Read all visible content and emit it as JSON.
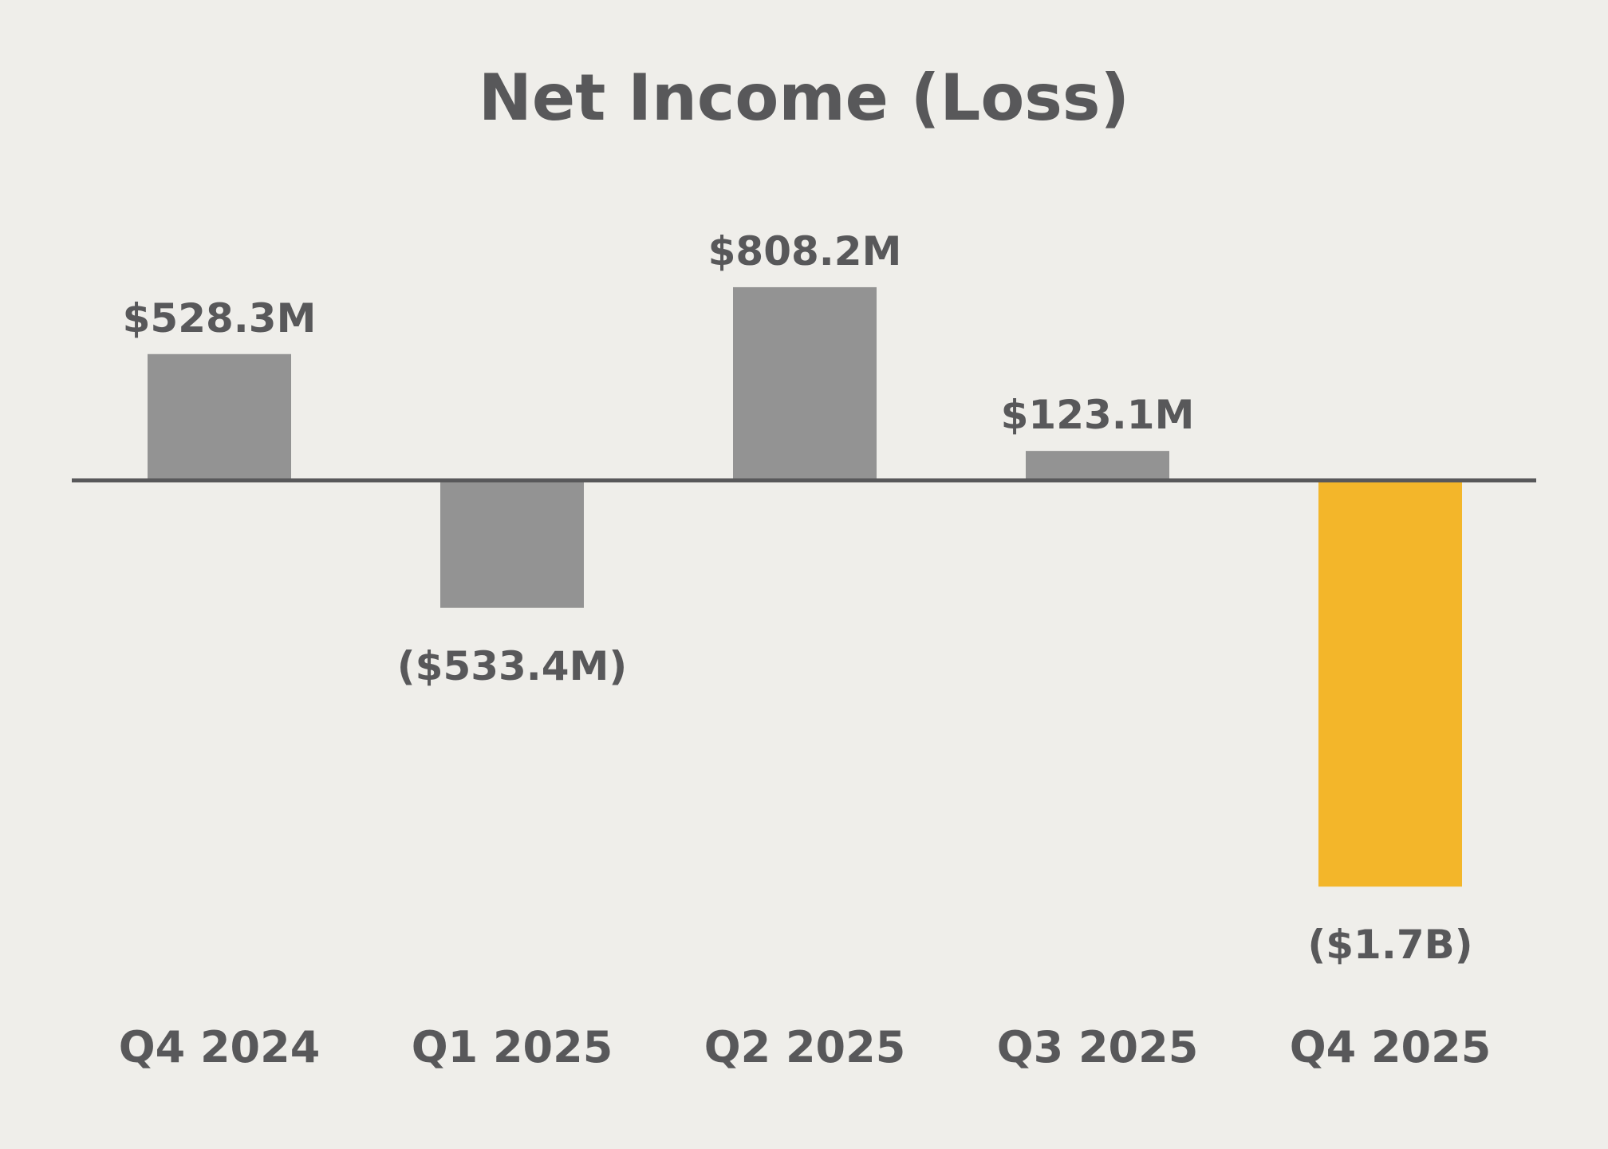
{
  "chart_data": {
    "type": "bar",
    "title": "Net Income (Loss)",
    "xlabel": "",
    "ylabel": "",
    "unit": "USD millions",
    "categories": [
      "Q4 2024",
      "Q1 2025",
      "Q2 2025",
      "Q3 2025",
      "Q4 2025"
    ],
    "values": [
      528.3,
      -533.4,
      808.2,
      123.1,
      -1700
    ],
    "data_labels": [
      "$528.3M",
      "($533.4M)",
      "$808.2M",
      "$123.1M",
      "($1.7B)"
    ],
    "ylim": [
      -1800,
      1000
    ],
    "grid": false,
    "legend": "none",
    "highlight_index": 4,
    "colors": {
      "background": "#efeeea",
      "bar": "#939393",
      "highlight": "#f3b62a",
      "text": "#58585a",
      "baseline": "#58585a"
    }
  }
}
